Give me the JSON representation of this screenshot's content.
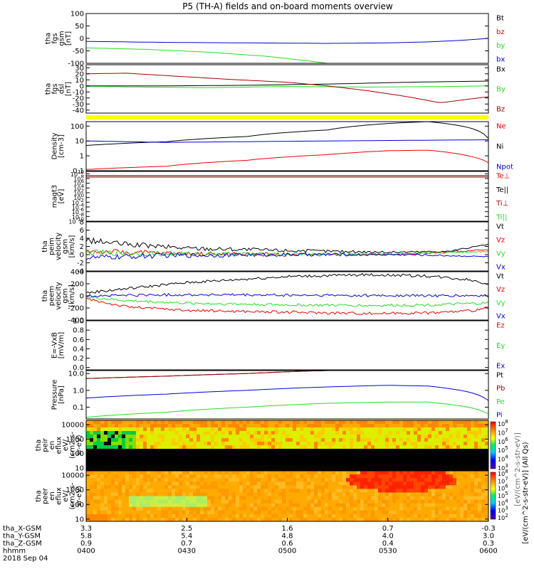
{
  "title": "P5 (TH-A) fields and on-board moments overview",
  "colors": {
    "black": "#000000",
    "red": "#ee0000",
    "green": "#22dd22",
    "blue": "#0000dd",
    "darkred": "#aa0000",
    "yellow": "#ffff00"
  },
  "chart_data": [
    {
      "type": "line",
      "id": "fgs",
      "ylabel": [
        "tha",
        "fgs",
        "gsm",
        "[nT]"
      ],
      "ylim": [
        -100,
        100
      ],
      "yticks": [
        100,
        50,
        0,
        -50,
        -100
      ],
      "series": [
        {
          "name": "Bt",
          "color": "#000000",
          "x": [],
          "y": []
        },
        {
          "name": "bz",
          "color": "#ee0000",
          "x": [],
          "y": []
        },
        {
          "name": "by",
          "color": "#22dd22",
          "x": [
            0,
            0.15,
            0.3,
            0.45,
            0.55,
            0.6
          ],
          "y": [
            -38,
            -44,
            -55,
            -72,
            -90,
            -100
          ]
        },
        {
          "name": "bx",
          "color": "#0000dd",
          "x": [
            0,
            0.2,
            0.4,
            0.6,
            0.75,
            0.85,
            0.93,
            1.0
          ],
          "y": [
            -12,
            -16,
            -18,
            -20,
            -18,
            -14,
            -8,
            0
          ]
        }
      ]
    },
    {
      "type": "line",
      "id": "fgs-dsl",
      "ylabel": [
        "tha",
        "fgs",
        "dsl",
        "[nT]"
      ],
      "ylim": [
        -45,
        35
      ],
      "yticks": [
        30,
        20,
        10,
        0,
        -10,
        -20,
        -30,
        -40
      ],
      "series": [
        {
          "name": "Bx",
          "color": "#000000",
          "x": [
            0,
            0.2,
            0.4,
            0.6,
            0.8,
            1.0
          ],
          "y": [
            0,
            0,
            1,
            3,
            6,
            8
          ]
        },
        {
          "name": "By",
          "color": "#22dd22",
          "x": [
            0,
            0.3,
            0.5,
            0.7,
            0.9,
            1.0
          ],
          "y": [
            -1,
            -3,
            -1,
            -2,
            -1,
            0
          ]
        },
        {
          "name": "Bz",
          "color": "#aa0000",
          "x": [
            0,
            0.1,
            0.2,
            0.35,
            0.5,
            0.6,
            0.7,
            0.8,
            0.88,
            0.95,
            1.0
          ],
          "y": [
            20,
            21,
            17,
            11,
            6,
            0,
            -8,
            -18,
            -28,
            -22,
            -18
          ]
        }
      ]
    },
    {
      "type": "line",
      "id": "density",
      "ylog": true,
      "ylabel": [
        "Density",
        "[cm-3]"
      ],
      "ylim": [
        0.1,
        200
      ],
      "yticks": [
        100,
        10,
        1,
        0.1
      ],
      "ytick_labels": [
        "100",
        "10",
        "1",
        "0.1"
      ],
      "series": [
        {
          "name": "Ne",
          "color": "#ee0000",
          "x": [
            0,
            0.2,
            0.4,
            0.6,
            0.75,
            0.85,
            0.95,
            1.0
          ],
          "y": [
            0.12,
            0.2,
            0.5,
            1.2,
            2.2,
            2.4,
            1.0,
            0.35
          ]
        },
        {
          "name": "Ni",
          "color": "#000000",
          "x": [
            0,
            0.2,
            0.4,
            0.6,
            0.75,
            0.85,
            0.95,
            1.0
          ],
          "y": [
            5,
            9,
            20,
            55,
            150,
            200,
            80,
            15
          ]
        },
        {
          "name": "Npot",
          "color": "#0000dd",
          "x": [
            0,
            0.2,
            0.4,
            0.6,
            0.8,
            1.0
          ],
          "y": [
            10,
            8,
            9,
            10,
            11,
            12
          ]
        }
      ]
    },
    {
      "type": "line",
      "id": "magt3",
      "ylog": true,
      "ylabel": [
        "magt3",
        "[eV]"
      ],
      "ylim": [
        1e-10,
        100000000000
      ],
      "yticks": [
        10000000000,
        100000000,
        1000000,
        10000,
        100,
        1,
        0.01,
        0.0001,
        1e-06,
        1e-08,
        1e-10
      ],
      "ytick_labels": [
        "10^10",
        "10^8",
        "10^6",
        "10^4",
        "10^2",
        "10^0",
        "10^-2",
        "10^-4",
        "10^-6",
        "10^-8",
        "10^-10"
      ],
      "series": [
        {
          "name": "Te⊥",
          "color": "#ee0000",
          "x": [],
          "y": []
        },
        {
          "name": "Te||",
          "color": "#000000",
          "x": [],
          "y": []
        },
        {
          "name": "Ti⊥",
          "color": "#aa0000",
          "x": [],
          "y": []
        },
        {
          "name": "Ti||",
          "color": "#22dd22",
          "x": [],
          "y": []
        }
      ]
    },
    {
      "type": "line",
      "id": "peim",
      "ylabel": [
        "tha",
        "peim",
        "velocity",
        "gsm",
        "[km/s]"
      ],
      "ylim": [
        -4,
        8
      ],
      "yticks": [
        8,
        6,
        4,
        2,
        0,
        -2,
        -4
      ],
      "series": [
        {
          "name": "Vt",
          "color": "#000000",
          "x": [
            0,
            0.1,
            0.25,
            0.5,
            0.75,
            0.9,
            1.0
          ],
          "y": [
            3.5,
            2.5,
            1.6,
            1.0,
            0.6,
            0.8,
            2.5
          ]
        },
        {
          "name": "Vz",
          "color": "#ee0000",
          "x": [
            0,
            0.2,
            0.5,
            0.8,
            1.0
          ],
          "y": [
            0.8,
            0.3,
            0.0,
            0.1,
            1.2
          ]
        },
        {
          "name": "Vy",
          "color": "#22dd22",
          "x": [
            0,
            0.2,
            0.5,
            0.8,
            1.0
          ],
          "y": [
            0.5,
            0.2,
            0.1,
            0.2,
            0.8
          ]
        },
        {
          "name": "Vx",
          "color": "#0000dd",
          "x": [
            0,
            0.2,
            0.5,
            0.8,
            1.0
          ],
          "y": [
            -0.8,
            -0.2,
            0.0,
            0.0,
            -0.5
          ]
        }
      ]
    },
    {
      "type": "line",
      "id": "peem",
      "ylabel": [
        "tha",
        "peem",
        "velocity",
        "gsm",
        "[km/s]"
      ],
      "ylim": [
        -400,
        400
      ],
      "yticks": [
        400,
        200,
        0,
        -200,
        -400
      ],
      "series": [
        {
          "name": "Vt",
          "color": "#000000",
          "x": [
            0,
            0.1,
            0.25,
            0.5,
            0.7,
            0.85,
            0.95,
            1.0
          ],
          "y": [
            50,
            120,
            220,
            320,
            350,
            330,
            270,
            200
          ]
        },
        {
          "name": "Vz",
          "color": "#ee0000",
          "x": [
            0,
            0.1,
            0.25,
            0.5,
            0.7,
            0.85,
            0.95,
            1.0
          ],
          "y": [
            -50,
            -180,
            -240,
            -270,
            -290,
            -280,
            -250,
            -200
          ]
        },
        {
          "name": "Vy",
          "color": "#22dd22",
          "x": [
            0,
            0.1,
            0.25,
            0.5,
            0.7,
            0.85,
            1.0
          ],
          "y": [
            -20,
            -80,
            -120,
            -150,
            -160,
            -150,
            -120
          ]
        },
        {
          "name": "Vx",
          "color": "#0000dd",
          "x": [
            0,
            0.1,
            0.25,
            0.5,
            0.75,
            1.0
          ],
          "y": [
            0,
            10,
            20,
            10,
            5,
            0
          ]
        }
      ]
    },
    {
      "type": "line",
      "id": "efield",
      "ylabel": [
        "E=-VxB",
        "[mV/m]"
      ],
      "ylim": [
        -0.05,
        1.0
      ],
      "yticks": [
        1.0,
        0.8,
        0.6,
        0.4,
        0.2,
        0.0
      ],
      "ytick_labels": [
        "1.0",
        "0.8",
        "0.6",
        "0.4",
        "0.2",
        "0.0"
      ],
      "series": [
        {
          "name": "Ez",
          "color": "#ee0000",
          "x": [],
          "y": []
        },
        {
          "name": "Ey",
          "color": "#22dd22",
          "x": [],
          "y": []
        },
        {
          "name": "Ex",
          "color": "#0000dd",
          "x": [],
          "y": []
        }
      ]
    },
    {
      "type": "line",
      "id": "pressure",
      "ylog": true,
      "ylabel": [
        "Pressure",
        "[nPa]"
      ],
      "ylim": [
        0.02,
        15
      ],
      "yticks": [
        10,
        1,
        0.1
      ],
      "ytick_labels": [
        "10.0",
        "1.0",
        "0.1"
      ],
      "series": [
        {
          "name": "Pt",
          "color": "#000000",
          "x": [
            0,
            0.2,
            0.4,
            0.55,
            0.6
          ],
          "y": [
            5,
            7,
            10,
            14,
            15
          ]
        },
        {
          "name": "Pb",
          "color": "#aa0000",
          "x": [
            0,
            0.2,
            0.4,
            0.55,
            0.6
          ],
          "y": [
            5,
            7,
            10,
            14,
            15
          ]
        },
        {
          "name": "Pe",
          "color": "#22dd22",
          "x": [
            0,
            0.2,
            0.4,
            0.6,
            0.75,
            0.85,
            0.95,
            1.0
          ],
          "y": [
            0.025,
            0.05,
            0.1,
            0.17,
            0.2,
            0.2,
            0.1,
            0.04
          ]
        },
        {
          "name": "Pi",
          "color": "#0000dd",
          "x": [
            0,
            0.2,
            0.4,
            0.6,
            0.75,
            0.85,
            0.95,
            1.0
          ],
          "y": [
            0.35,
            0.6,
            1.0,
            1.6,
            2.0,
            1.8,
            0.8,
            0.25
          ]
        }
      ]
    },
    {
      "type": "heatmap",
      "id": "peir",
      "ylabel": [
        "tha",
        "peir",
        "en",
        "eflux",
        "eV/",
        "(cm2-s-",
        "sr-eV)"
      ],
      "ylog": true,
      "ylim": [
        7,
        20000
      ],
      "yticks": [
        10000,
        1000,
        100,
        10
      ],
      "ytick_labels": [
        "10000",
        "1000",
        "100",
        "10"
      ]
    },
    {
      "type": "heatmap",
      "id": "peer",
      "ylabel": [
        "tha",
        "peer",
        "en",
        "eflux",
        "eV/",
        "(cm2-s-",
        "sr-eV)"
      ],
      "ylog": true,
      "ylim": [
        7,
        20000
      ],
      "yticks": [
        10000,
        1000,
        100,
        10
      ],
      "ytick_labels": [
        "10000",
        "1000",
        "100",
        "10"
      ]
    }
  ],
  "colorbar": {
    "label": "[eV/(cm^2-s-str-eV)] (All Qs)",
    "overlap_label": "[eV/(cm^2-s-str-eV)]",
    "top_ticks": [
      "10^8",
      "10^7",
      "10^6",
      "10^5",
      "10^4",
      "10^3"
    ],
    "bottom_ticks": [
      "10^8",
      "10^7",
      "10^6",
      "10^5",
      "10^4",
      "10^3",
      "10^2"
    ]
  },
  "xaxis": {
    "rows": [
      {
        "label": "tha_X-GSM",
        "values": [
          "3.3",
          "2.5",
          "1.6",
          "0.7",
          "-0.3"
        ]
      },
      {
        "label": "tha_Y-GSM",
        "values": [
          "5.8",
          "5.4",
          "4.8",
          "4.0",
          "3.0"
        ]
      },
      {
        "label": "tha_Z-GSM",
        "values": [
          "0.9",
          "0.7",
          "0.6",
          "0.4",
          "0.3"
        ]
      },
      {
        "label": "hhmm",
        "values": [
          "0400",
          "0430",
          "0500",
          "0530",
          "0600"
        ]
      }
    ],
    "date": "2018 Sep 04"
  }
}
